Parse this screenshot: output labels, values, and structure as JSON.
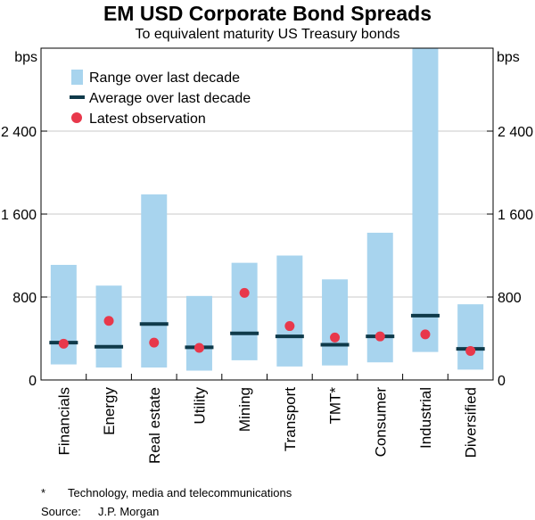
{
  "chart_data": {
    "type": "range-bar",
    "title": "EM USD Corporate Bond Spreads",
    "subtitle": "To equivalent maturity US Treasury bonds",
    "left_unit": "bps",
    "right_unit": "bps",
    "ylim": [
      0,
      3200
    ],
    "yticks": [
      0,
      800,
      1600,
      2400
    ],
    "ytick_labels": [
      "0",
      "800",
      "1 600",
      "2 400"
    ],
    "categories": [
      "Financials",
      "Energy",
      "Real estate",
      "Utility",
      "Mining",
      "Transport",
      "TMT*",
      "Consumer",
      "Industrial",
      "Diversified"
    ],
    "series": [
      {
        "name": "Range over last decade",
        "kind": "range",
        "color": "#a8d4ee",
        "low": [
          150,
          120,
          120,
          90,
          190,
          130,
          140,
          170,
          270,
          100
        ],
        "high": [
          1110,
          910,
          1790,
          810,
          1130,
          1200,
          970,
          1420,
          3250,
          730
        ]
      },
      {
        "name": "Average over last decade",
        "kind": "average",
        "color": "#0f3a4a",
        "values": [
          360,
          320,
          540,
          315,
          450,
          420,
          340,
          420,
          620,
          300
        ]
      },
      {
        "name": "Latest observation",
        "kind": "point",
        "color": "#e8384b",
        "values": [
          350,
          570,
          360,
          310,
          840,
          520,
          410,
          420,
          440,
          280
        ]
      }
    ]
  },
  "footnote_mark": "*",
  "footnote": "Technology, media and telecommunications",
  "source_label": "Source:",
  "source_value": "J.P. Morgan"
}
